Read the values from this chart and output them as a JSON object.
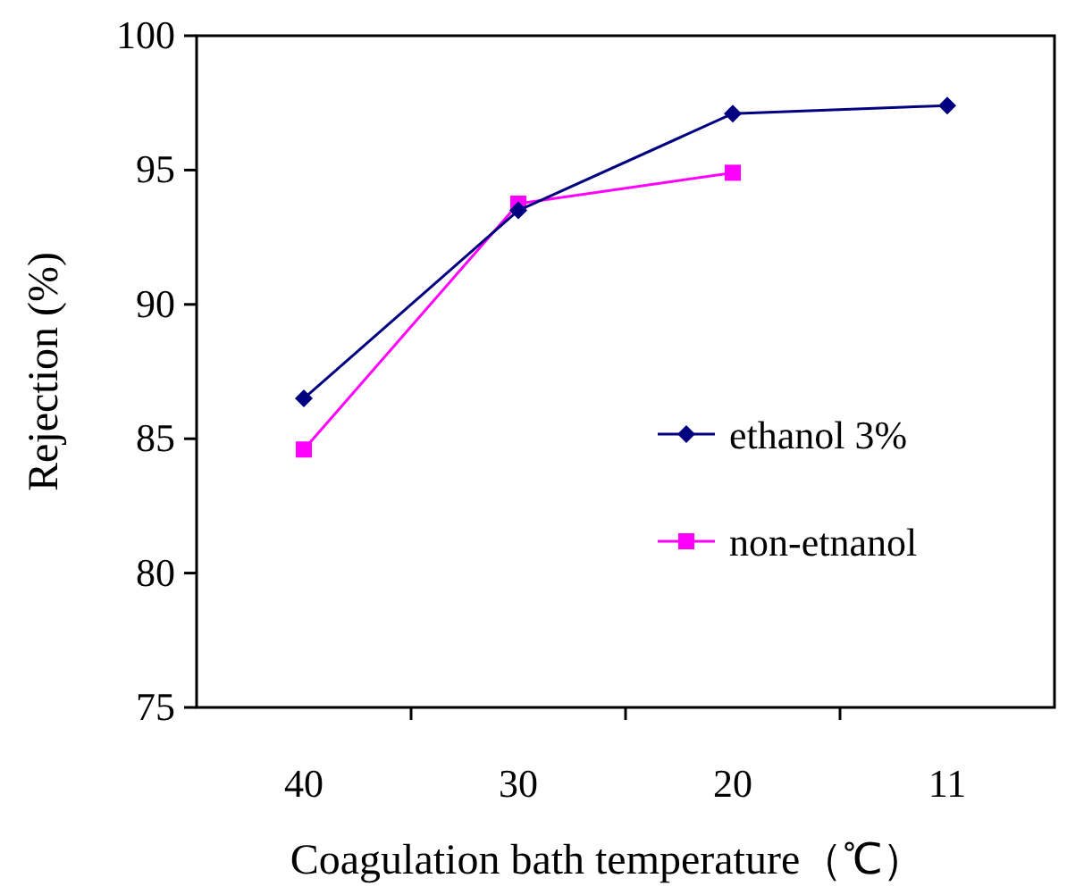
{
  "chart_data": {
    "type": "line",
    "xlabel": "Coagulation bath temperature（℃）",
    "ylabel": "Rejection (%)",
    "categories": [
      "40",
      "30",
      "20",
      "11"
    ],
    "series": [
      {
        "name": "ethanol 3%",
        "color": "#000080",
        "marker": "diamond",
        "values": [
          86.5,
          93.5,
          97.1,
          97.4
        ]
      },
      {
        "name": "non-etnanol",
        "color": "#ff00ff",
        "marker": "square",
        "values": [
          84.6,
          93.75,
          94.9,
          null
        ]
      }
    ],
    "ylim": [
      75,
      100
    ],
    "yticks": [
      75,
      80,
      85,
      90,
      95,
      100
    ],
    "grid": false,
    "legend": "right"
  }
}
